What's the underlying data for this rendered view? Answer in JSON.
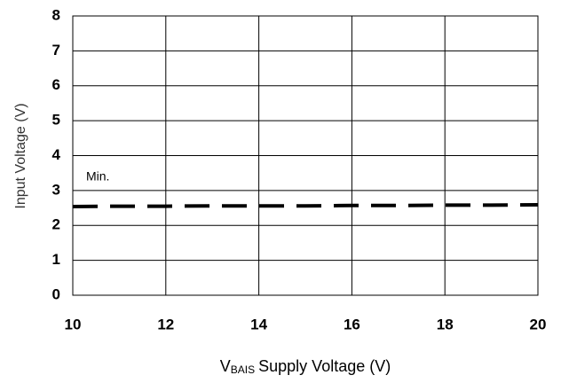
{
  "chart_data": {
    "type": "line",
    "xlabel": "V",
    "xlabel_subscript": "BAIS",
    "xlabel_rest": "Supply Voltage (V)",
    "ylabel": "Input Voltage (V)",
    "annotation": "Min.",
    "x": [
      10,
      11,
      12,
      13,
      14,
      15,
      16,
      17,
      18,
      19,
      20
    ],
    "series": [
      {
        "name": "Min.",
        "color": "#000000",
        "values": [
          2.54,
          2.55,
          2.55,
          2.56,
          2.56,
          2.56,
          2.57,
          2.57,
          2.58,
          2.58,
          2.59
        ]
      }
    ],
    "xlim": [
      10,
      20
    ],
    "xticks": [
      10,
      12,
      14,
      16,
      18,
      20
    ],
    "ylim": [
      0,
      8
    ],
    "yticks": [
      0,
      1,
      2,
      3,
      4,
      5,
      6,
      7,
      8
    ],
    "grid": true,
    "dashed": true
  }
}
